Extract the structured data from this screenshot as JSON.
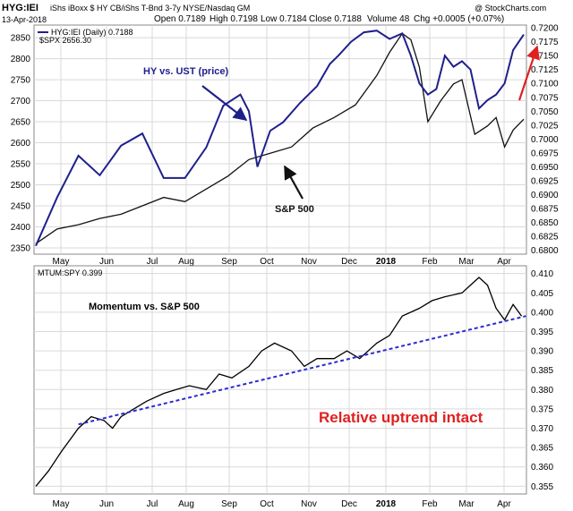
{
  "header": {
    "symbol": "HYG:IEI",
    "description": "iShs iBoxx $ HY CB/iShs T-Bnd 3-7y  NYSE/Nasdaq GM",
    "source": "@ StockCharts.com",
    "date": "13-Apr-2018",
    "open": "Open 0.7189",
    "high": "High 0.7198",
    "low": "Low 0.7184",
    "close": "Close 0.7188",
    "volume": "Volume 48",
    "chg": "Chg +0.0005 (+0.07%)"
  },
  "colors": {
    "hy_line": "#1f1f8c",
    "spx_line": "#111111",
    "mtum_line": "#000000",
    "trend_dash": "#2b2bd6",
    "red_annotation": "#e02020",
    "grid": "#d9d9d9"
  },
  "chart_data": [
    {
      "type": "line",
      "legend": [
        "HYG:IEI (Daily) 0.7188",
        "$SPX 2656.30"
      ],
      "x_tick_labels": [
        "May",
        "Jun",
        "Jul",
        "Aug",
        "Sep",
        "Oct",
        "Nov",
        "Dec",
        "2018",
        "Feb",
        "Mar",
        "Apr"
      ],
      "y_left_ticks": [
        2350,
        2400,
        2450,
        2500,
        2550,
        2600,
        2650,
        2700,
        2750,
        2800,
        2850
      ],
      "y_left_range": [
        2335,
        2880
      ],
      "y_right_ticks": [
        "0.6800",
        "0.6825",
        "0.6850",
        "0.6875",
        "0.6900",
        "0.6925",
        "0.6950",
        "0.6975",
        "0.7000",
        "0.7025",
        "0.7050",
        "0.7075",
        "0.7100",
        "0.7125",
        "0.7150",
        "0.7175",
        "0.7200"
      ],
      "y_right_range": [
        0.6793,
        0.7205
      ],
      "annotations": {
        "hy_label": "HY vs. UST (price)",
        "spx_label": "S&P 500"
      },
      "series": [
        {
          "name": "HYG:IEI (Daily) 0.7188",
          "axis": "right",
          "x": [
            0.0,
            0.5,
            1.0,
            1.5,
            2.0,
            2.5,
            3.0,
            3.5,
            4.0,
            4.4,
            4.8,
            5.0,
            5.2,
            5.5,
            5.8,
            6.2,
            6.6,
            6.9,
            7.1,
            7.4,
            7.7,
            8.0,
            8.3,
            8.6,
            8.8,
            9.0,
            9.2,
            9.4,
            9.6,
            9.8,
            10.0,
            10.2,
            10.4,
            10.6,
            10.8,
            11.0,
            11.2,
            11.45
          ],
          "values": [
            0.6808,
            0.6895,
            0.697,
            0.6935,
            0.6988,
            0.701,
            0.693,
            0.693,
            0.6985,
            0.706,
            0.708,
            0.705,
            0.695,
            0.7015,
            0.703,
            0.7065,
            0.7095,
            0.7135,
            0.715,
            0.7175,
            0.7192,
            0.7195,
            0.718,
            0.719,
            0.715,
            0.71,
            0.708,
            0.709,
            0.715,
            0.713,
            0.714,
            0.7125,
            0.7055,
            0.707,
            0.708,
            0.71,
            0.716,
            0.7188
          ]
        },
        {
          "name": "$SPX 2656.30",
          "axis": "left",
          "x": [
            0.0,
            0.5,
            1.0,
            1.5,
            2.0,
            2.5,
            3.0,
            3.5,
            4.0,
            4.5,
            5.0,
            5.5,
            6.0,
            6.5,
            7.0,
            7.5,
            8.0,
            8.3,
            8.6,
            8.8,
            9.0,
            9.2,
            9.5,
            9.8,
            10.0,
            10.3,
            10.6,
            10.8,
            11.0,
            11.2,
            11.45
          ],
          "values": [
            2360,
            2395,
            2405,
            2420,
            2430,
            2450,
            2470,
            2460,
            2490,
            2520,
            2560,
            2575,
            2590,
            2635,
            2660,
            2690,
            2760,
            2815,
            2860,
            2845,
            2780,
            2650,
            2700,
            2740,
            2750,
            2620,
            2640,
            2660,
            2590,
            2630,
            2656
          ]
        }
      ]
    },
    {
      "type": "line",
      "legend": [
        "MTUM:SPY 0.399"
      ],
      "x_tick_labels": [
        "May",
        "Jun",
        "Jul",
        "Aug",
        "Sep",
        "Oct",
        "Nov",
        "Dec",
        "2018",
        "Feb",
        "Mar",
        "Apr"
      ],
      "y_ticks": [
        "0.355",
        "0.360",
        "0.365",
        "0.370",
        "0.375",
        "0.380",
        "0.385",
        "0.390",
        "0.395",
        "0.400",
        "0.405",
        "0.410"
      ],
      "y_range": [
        0.353,
        0.412
      ],
      "annotations": {
        "mom_label": "Momentum vs. S&P 500",
        "uptrend_label": "Relative uptrend intact"
      },
      "series": [
        {
          "name": "MTUM:SPY 0.399",
          "x": [
            0.0,
            0.3,
            0.6,
            1.0,
            1.3,
            1.6,
            1.8,
            2.0,
            2.3,
            2.6,
            3.0,
            3.3,
            3.6,
            4.0,
            4.3,
            4.6,
            5.0,
            5.3,
            5.6,
            6.0,
            6.3,
            6.6,
            7.0,
            7.3,
            7.6,
            8.0,
            8.3,
            8.6,
            9.0,
            9.3,
            9.6,
            10.0,
            10.2,
            10.4,
            10.6,
            10.8,
            11.0,
            11.2,
            11.4
          ],
          "values": [
            0.355,
            0.359,
            0.364,
            0.37,
            0.373,
            0.372,
            0.37,
            0.373,
            0.375,
            0.377,
            0.379,
            0.38,
            0.381,
            0.38,
            0.384,
            0.383,
            0.386,
            0.39,
            0.392,
            0.39,
            0.386,
            0.388,
            0.388,
            0.39,
            0.388,
            0.392,
            0.394,
            0.399,
            0.401,
            0.403,
            0.404,
            0.405,
            0.407,
            0.409,
            0.407,
            0.401,
            0.398,
            0.402,
            0.399
          ]
        }
      ],
      "trendline": {
        "x": [
          1.0,
          11.5
        ],
        "values": [
          0.371,
          0.399
        ]
      }
    }
  ]
}
